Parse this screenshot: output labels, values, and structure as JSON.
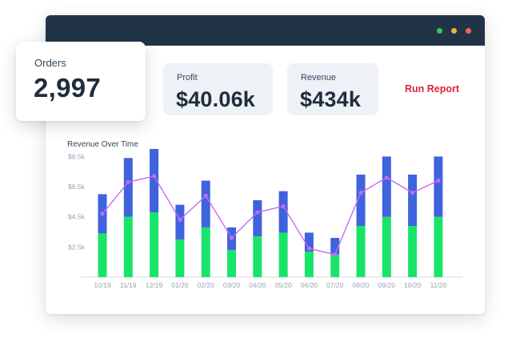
{
  "window": {
    "controls": [
      {
        "name": "maximize",
        "color": "#34c759"
      },
      {
        "name": "minimize",
        "color": "#f4b23c"
      },
      {
        "name": "close",
        "color": "#f26457"
      }
    ]
  },
  "orders": {
    "label": "Orders",
    "value": "2,997"
  },
  "profit": {
    "label": "Profit",
    "value": "$40.06k"
  },
  "revenue": {
    "label": "Revenue",
    "value": "$434k"
  },
  "actions": {
    "run_report": "Run Report"
  },
  "colors": {
    "titlebar": "#213447",
    "blue_bar": "#3f62de",
    "green_bar": "#19e46a",
    "line": "#c76af2",
    "accent": "#e0243c"
  },
  "chart_data": {
    "type": "bar",
    "title": "Revenue Over Time",
    "categories": [
      "10/19",
      "11/19",
      "12/19",
      "01/20",
      "02/20",
      "03/20",
      "04/20",
      "05/20",
      "06/20",
      "07/20",
      "08/20",
      "09/20",
      "10/20",
      "11/20"
    ],
    "y_ticks": [
      "$8.5k",
      "$6.5k",
      "$4.5k",
      "$2.5k"
    ],
    "y_tick_values": [
      8500,
      6500,
      4500,
      2500
    ],
    "ylim": [
      500,
      9000
    ],
    "stacked": true,
    "series": [
      {
        "kind": "bar",
        "color": "#19e46a",
        "values": [
          2900,
          4000,
          4300,
          2500,
          3300,
          1800,
          2700,
          2950,
          1700,
          1500,
          3400,
          4000,
          3400,
          4000
        ]
      },
      {
        "kind": "bar",
        "color": "#3f62de",
        "values": [
          2600,
          3900,
          4200,
          2300,
          3100,
          1500,
          2400,
          2750,
          1250,
          1100,
          3400,
          4000,
          3400,
          4000
        ]
      },
      {
        "kind": "line",
        "color": "#c76af2",
        "values": [
          4700,
          6800,
          7200,
          4300,
          5900,
          3100,
          4800,
          5200,
          2400,
          2000,
          6100,
          7100,
          6100,
          6900
        ]
      }
    ],
    "grid": false,
    "legend": "none"
  }
}
